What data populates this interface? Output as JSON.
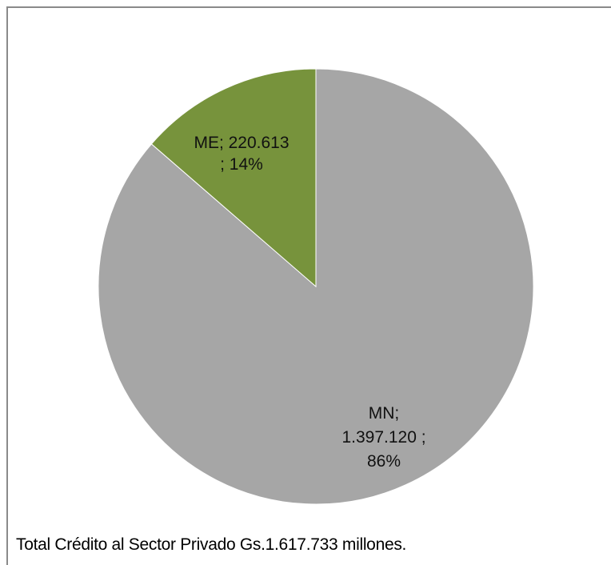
{
  "chart_data": {
    "type": "pie",
    "title": "",
    "slices": [
      {
        "name": "MN",
        "value": 1397120,
        "percent": 86,
        "color": "#a6a6a6",
        "label_lines": [
          "MN;",
          "1.397.120 ;",
          "86%"
        ]
      },
      {
        "name": "ME",
        "value": 220613,
        "percent": 14,
        "color": "#77933c",
        "label_lines": [
          "ME; 220.613",
          "; 14%"
        ]
      }
    ],
    "start_angle_deg": 0,
    "direction": "clockwise",
    "legend": "none"
  },
  "caption": "Total Crédito al Sector Privado Gs.1.617.733 millones."
}
